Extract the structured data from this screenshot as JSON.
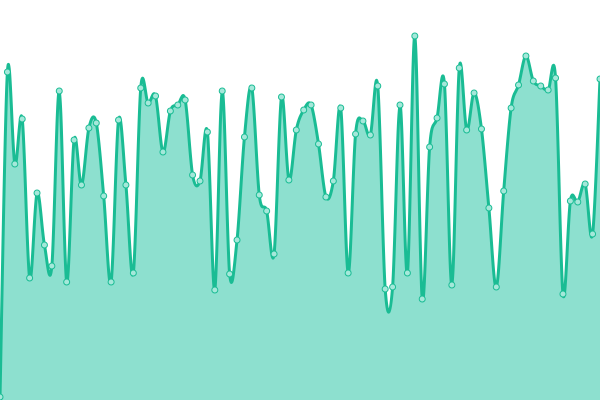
{
  "chart_data": {
    "type": "area",
    "title": "",
    "xlabel": "",
    "ylabel": "",
    "grid": false,
    "legend": "none",
    "ylim": [
      0,
      400
    ],
    "colors": {
      "fill": "#8de0cf",
      "stroke": "#1abc94",
      "point_fill": "#a5e8da"
    },
    "values": [
      3,
      328,
      236,
      281,
      122,
      207,
      155,
      134,
      309,
      118,
      260,
      215,
      272,
      277,
      204,
      118,
      280,
      215,
      127,
      312,
      297,
      304,
      248,
      289,
      295,
      300,
      225,
      219,
      268,
      110,
      309,
      126,
      160,
      263,
      312,
      205,
      189,
      146,
      303,
      220,
      270,
      290,
      295,
      256,
      203,
      219,
      292,
      127,
      266,
      279,
      265,
      314,
      111,
      113,
      295,
      127,
      364,
      101,
      253,
      282,
      316,
      115,
      332,
      270,
      307,
      271,
      192,
      113,
      209,
      292,
      315,
      344,
      319,
      314,
      310,
      322,
      106,
      199,
      198,
      216,
      166,
      321
    ]
  }
}
